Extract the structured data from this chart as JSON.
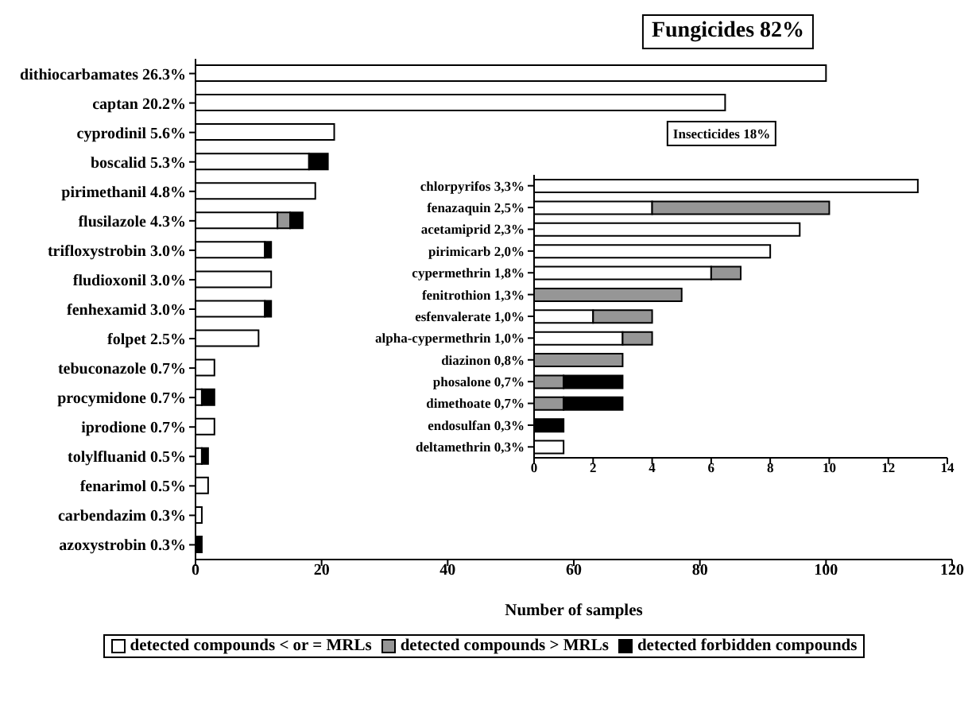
{
  "chart_data": [
    {
      "type": "bar",
      "title": "Fungicides 82%",
      "orientation": "horizontal",
      "stacked": true,
      "legend": "bottom",
      "xlabel": "Number of samples",
      "categories": [
        "dithiocarbamates 26.3%",
        "captan 20.2%",
        "cyprodinil 5.6%",
        "boscalid 5.3%",
        "pirimethanil 4.8%",
        "flusilazole 4.3%",
        "trifloxystrobin 3.0%",
        "fludioxonil 3.0%",
        "fenhexamid 3.0%",
        "folpet 2.5%",
        "tebuconazole 0.7%",
        "procymidone 0.7%",
        "iprodione 0.7%",
        "tolylfluanid 0.5%",
        "fenarimol 0.5%",
        "carbendazim 0.3%",
        "azoxystrobin 0.3%"
      ],
      "series": [
        {
          "name": "detected compounds < or = MRLs",
          "color": "#ffffff",
          "values": [
            100,
            84,
            22,
            18,
            19,
            13,
            11,
            12,
            11,
            10,
            3,
            1,
            3,
            1,
            2,
            1,
            0
          ]
        },
        {
          "name": "detected compounds > MRLs",
          "color": "#969696",
          "values": [
            0,
            0,
            0,
            0,
            0,
            2,
            0,
            0,
            0,
            0,
            0,
            0,
            0,
            0,
            0,
            0,
            0
          ]
        },
        {
          "name": "detected forbidden compounds",
          "color": "#000000",
          "values": [
            0,
            0,
            0,
            3,
            0,
            2,
            1,
            0,
            1,
            0,
            0,
            2,
            0,
            1,
            0,
            0,
            1
          ]
        }
      ],
      "xlim": [
        0,
        120
      ],
      "xticks": [
        0,
        20,
        40,
        60,
        80,
        100,
        120
      ]
    },
    {
      "type": "bar",
      "title": "Insecticides 18%",
      "orientation": "horizontal",
      "stacked": true,
      "categories": [
        "chlorpyrifos 3,3%",
        "fenazaquin 2,5%",
        "acetamiprid 2,3%",
        "pirimicarb 2,0%",
        "cypermethrin 1,8%",
        "fenitrothion 1,3%",
        "esfenvalerate 1,0%",
        "alpha-cypermethrin 1,0%",
        "diazinon 0,8%",
        "phosalone 0,7%",
        "dimethoate 0,7%",
        "endosulfan 0,3%",
        "deltamethrin 0,3%"
      ],
      "series": [
        {
          "color": "#ffffff",
          "values": [
            13,
            4,
            9,
            8,
            6,
            0,
            2,
            3,
            0,
            0,
            0,
            0,
            1
          ]
        },
        {
          "color": "#969696",
          "values": [
            0,
            6,
            0,
            0,
            1,
            5,
            2,
            1,
            3,
            1,
            1,
            0,
            0
          ]
        },
        {
          "color": "#000000",
          "values": [
            0,
            0,
            0,
            0,
            0,
            0,
            0,
            0,
            0,
            2,
            2,
            1,
            0
          ]
        }
      ],
      "xlim": [
        0,
        14
      ],
      "xticks": [
        0,
        2,
        4,
        6,
        8,
        10,
        12,
        14
      ]
    }
  ]
}
